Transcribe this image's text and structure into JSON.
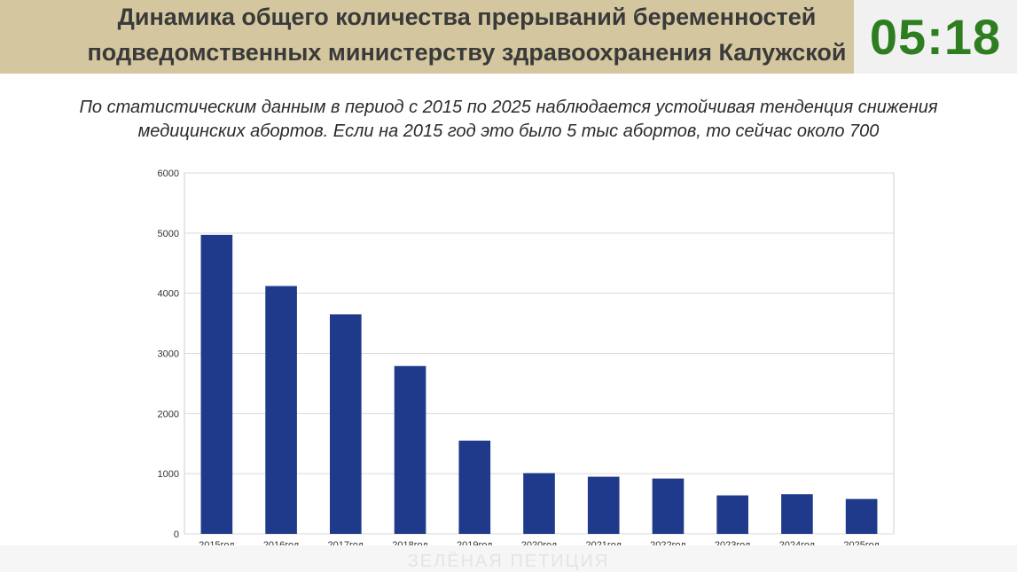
{
  "header": {
    "title_line1": "Динамика общего количества прерываний беременностей",
    "title_line2": "подведомственных министерству здравоохранения Калужской",
    "timer": "05:18"
  },
  "subtitle": {
    "line1": "По статистическим данным в период с 2015 по 2025 наблюдается устойчивая тенденция снижения",
    "line2": "медицинских абортов. Если на 2015 год это было 5 тыс абортов, то сейчас около 700"
  },
  "colors": {
    "bar": "#1f3a8a",
    "banner": "#d4c79f",
    "timer": "#2e7d1f"
  },
  "chart_data": {
    "type": "bar",
    "categories": [
      "2015год",
      "2016год",
      "2017год",
      "2018год",
      "2019год",
      "2020год",
      "2021год",
      "2022год",
      "2023год",
      "2024год",
      "2025год"
    ],
    "values": [
      4970,
      4120,
      3650,
      2790,
      1550,
      1010,
      950,
      920,
      640,
      660,
      580
    ],
    "yticks": [
      0,
      1000,
      2000,
      3000,
      4000,
      5000,
      6000
    ],
    "ylim": [
      0,
      6000
    ],
    "grid": true,
    "legend": false
  },
  "watermark": "ЗЕЛЁНАЯ ПЕТИЦИЯ"
}
